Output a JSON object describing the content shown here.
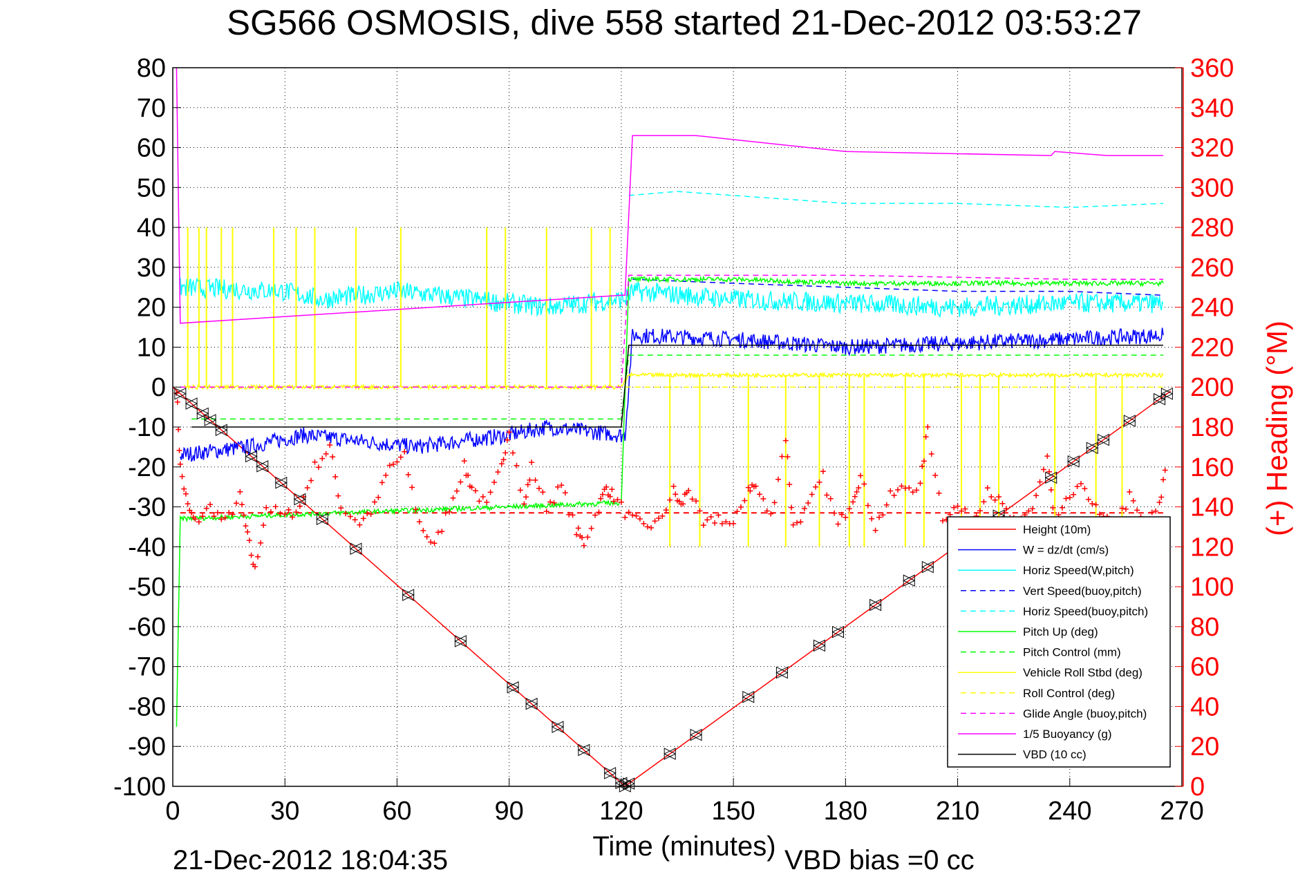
{
  "chart_data": {
    "type": "line",
    "title": "SG566 OSMOSIS, dive 558 started 21-Dec-2012 03:53:27",
    "xlabel": "Time (minutes)",
    "ylabel_right": "(+) Heading (°M)",
    "footer_left": "21-Dec-2012 18:04:35",
    "footer_right": "VBD bias =0 cc",
    "xlim": [
      0,
      270
    ],
    "ylim": [
      -100,
      80
    ],
    "ylim_right": [
      0,
      360
    ],
    "xticks": [
      "0",
      "30",
      "60",
      "90",
      "120",
      "150",
      "180",
      "210",
      "240",
      "270"
    ],
    "yticks": [
      "80",
      "70",
      "60",
      "50",
      "40",
      "30",
      "20",
      "10",
      "0",
      "-10",
      "-20",
      "-30",
      "-40",
      "-50",
      "-60",
      "-70",
      "-80",
      "-90",
      "-100"
    ],
    "yticks_right": [
      "360",
      "340",
      "320",
      "300",
      "280",
      "260",
      "240",
      "220",
      "200",
      "180",
      "160",
      "140",
      "120",
      "100",
      "80",
      "60",
      "40",
      "20",
      "0"
    ],
    "grid": true,
    "legend_position": "bottom-right",
    "series": [
      {
        "name": "Height (10m)",
        "color": "#ff0000",
        "dash": false,
        "points": [
          [
            0,
            0
          ],
          [
            121,
            -100
          ],
          [
            267,
            -1
          ]
        ]
      },
      {
        "name": "W = dz/dt (cm/s)",
        "color": "#0000ff",
        "dash": false,
        "noise": 2,
        "points": [
          [
            2,
            -17
          ],
          [
            20,
            -15
          ],
          [
            35,
            -12
          ],
          [
            65,
            -15
          ],
          [
            90,
            -12
          ],
          [
            100,
            -10
          ],
          [
            120,
            -12
          ],
          [
            121,
            -12
          ],
          [
            123,
            13
          ],
          [
            150,
            12
          ],
          [
            180,
            10
          ],
          [
            210,
            11
          ],
          [
            240,
            12
          ],
          [
            265,
            13
          ]
        ]
      },
      {
        "name": "Horiz Speed(W,pitch)",
        "color": "#00ffff",
        "dash": false,
        "noise": 2.5,
        "points": [
          [
            2,
            25
          ],
          [
            30,
            24
          ],
          [
            40,
            22
          ],
          [
            60,
            24
          ],
          [
            80,
            22
          ],
          [
            100,
            20
          ],
          [
            120,
            22
          ],
          [
            121,
            22
          ],
          [
            123,
            24
          ],
          [
            150,
            22
          ],
          [
            180,
            21
          ],
          [
            210,
            20
          ],
          [
            240,
            21
          ],
          [
            265,
            21
          ]
        ]
      },
      {
        "name": "Vert Speed(buoy,pitch)",
        "color": "#0000ff",
        "dash": true,
        "points": [
          [
            123,
            27
          ],
          [
            150,
            26
          ],
          [
            180,
            25
          ],
          [
            210,
            24
          ],
          [
            240,
            24
          ],
          [
            265,
            23
          ]
        ]
      },
      {
        "name": "Horiz Speed(buoy,pitch)",
        "color": "#00ffff",
        "dash": true,
        "points": [
          [
            122,
            48
          ],
          [
            135,
            49
          ],
          [
            150,
            48
          ],
          [
            180,
            46
          ],
          [
            210,
            46
          ],
          [
            240,
            45
          ],
          [
            265,
            46
          ]
        ]
      },
      {
        "name": "Pitch Up (deg)",
        "color": "#00ff00",
        "dash": false,
        "noise": 0.6,
        "points": [
          [
            1,
            -85
          ],
          [
            2,
            -33
          ],
          [
            30,
            -32
          ],
          [
            60,
            -31
          ],
          [
            90,
            -30
          ],
          [
            118,
            -29
          ],
          [
            120,
            -29
          ],
          [
            122,
            27
          ],
          [
            150,
            27
          ],
          [
            180,
            26
          ],
          [
            210,
            26
          ],
          [
            240,
            26
          ],
          [
            265,
            26
          ]
        ]
      },
      {
        "name": "Pitch Control (mm)",
        "color": "#00ff00",
        "dash": true,
        "points": [
          [
            5,
            -8
          ],
          [
            120,
            -8
          ],
          [
            122,
            8
          ],
          [
            265,
            8
          ]
        ]
      },
      {
        "name": "Vehicle Roll Stbd (deg)",
        "color": "#ffff00",
        "dash": false,
        "noise": 0.5,
        "points": [
          [
            3,
            0
          ],
          [
            120,
            0
          ],
          [
            122,
            3
          ],
          [
            265,
            3
          ]
        ],
        "spikes_before": [
          4,
          7,
          9,
          13,
          16,
          27,
          33,
          38,
          49,
          61,
          84,
          89,
          100,
          112,
          117
        ],
        "spikes_after": [
          133,
          141,
          154,
          164,
          173,
          181,
          185,
          196,
          201,
          211,
          216,
          221,
          236,
          247,
          254
        ]
      },
      {
        "name": "Roll Control (deg)",
        "color": "#ffff00",
        "dash": true,
        "points": [
          [
            2,
            0
          ],
          [
            265,
            0
          ]
        ]
      },
      {
        "name": "Glide Angle (buoy,pitch)",
        "color": "#ff00ff",
        "dash": true,
        "points": [
          [
            2,
            0
          ],
          [
            120,
            0
          ],
          [
            122,
            28
          ],
          [
            180,
            28
          ],
          [
            240,
            27
          ],
          [
            265,
            27
          ]
        ]
      },
      {
        "name": "1/5 Buoyancy (g)",
        "color": "#ff00ff",
        "dash": false,
        "points": [
          [
            1,
            80
          ],
          [
            2,
            16
          ],
          [
            120,
            23
          ],
          [
            121,
            23
          ],
          [
            123,
            63
          ],
          [
            140,
            63
          ],
          [
            150,
            62
          ],
          [
            180,
            59
          ],
          [
            235,
            58
          ],
          [
            236,
            59
          ],
          [
            250,
            58
          ],
          [
            265,
            58
          ]
        ]
      },
      {
        "name": "VBD (10 cc)",
        "color": "#000000",
        "dash": false,
        "points": [
          [
            5,
            -10
          ],
          [
            120,
            -10
          ],
          [
            122,
            10.5
          ],
          [
            265,
            10.5
          ]
        ]
      }
    ],
    "height_markers": [
      2,
      5,
      8,
      10,
      13,
      21,
      24,
      29,
      34,
      40,
      49,
      63,
      77,
      91,
      96,
      103,
      110,
      117,
      120,
      121,
      122,
      133,
      140,
      154,
      163,
      173,
      178,
      188,
      197,
      202,
      216,
      221,
      235,
      241,
      246,
      249,
      256,
      264,
      266
    ],
    "heading_target": 137,
    "heading": [
      [
        1,
        200
      ],
      [
        2,
        160
      ],
      [
        4,
        140
      ],
      [
        6,
        132
      ],
      [
        10,
        140
      ],
      [
        14,
        132
      ],
      [
        18,
        145
      ],
      [
        20,
        125
      ],
      [
        22,
        108
      ],
      [
        25,
        140
      ],
      [
        30,
        135
      ],
      [
        34,
        140
      ],
      [
        38,
        160
      ],
      [
        42,
        170
      ],
      [
        45,
        140
      ],
      [
        50,
        132
      ],
      [
        54,
        140
      ],
      [
        58,
        160
      ],
      [
        62,
        165
      ],
      [
        66,
        132
      ],
      [
        70,
        120
      ],
      [
        74,
        140
      ],
      [
        78,
        160
      ],
      [
        80,
        150
      ],
      [
        84,
        140
      ],
      [
        88,
        160
      ],
      [
        90,
        180
      ],
      [
        94,
        140
      ],
      [
        96,
        160
      ],
      [
        100,
        140
      ],
      [
        104,
        150
      ],
      [
        108,
        128
      ],
      [
        110,
        122
      ],
      [
        114,
        140
      ],
      [
        116,
        150
      ],
      [
        118,
        145
      ],
      [
        122,
        135
      ],
      [
        126,
        130
      ],
      [
        130,
        132
      ],
      [
        134,
        148
      ],
      [
        136,
        140
      ],
      [
        138,
        150
      ],
      [
        142,
        130
      ],
      [
        146,
        135
      ],
      [
        150,
        130
      ],
      [
        154,
        150
      ],
      [
        156,
        150
      ],
      [
        160,
        135
      ],
      [
        164,
        175
      ],
      [
        166,
        130
      ],
      [
        170,
        140
      ],
      [
        174,
        155
      ],
      [
        178,
        130
      ],
      [
        182,
        145
      ],
      [
        184,
        155
      ],
      [
        188,
        130
      ],
      [
        192,
        145
      ],
      [
        196,
        150
      ],
      [
        200,
        150
      ],
      [
        202,
        180
      ],
      [
        206,
        135
      ],
      [
        210,
        140
      ],
      [
        214,
        132
      ],
      [
        218,
        150
      ],
      [
        222,
        140
      ],
      [
        226,
        130
      ],
      [
        230,
        140
      ],
      [
        234,
        165
      ],
      [
        236,
        130
      ],
      [
        240,
        145
      ],
      [
        244,
        150
      ],
      [
        248,
        135
      ],
      [
        252,
        130
      ],
      [
        256,
        145
      ],
      [
        260,
        130
      ],
      [
        264,
        140
      ],
      [
        266,
        165
      ]
    ]
  }
}
